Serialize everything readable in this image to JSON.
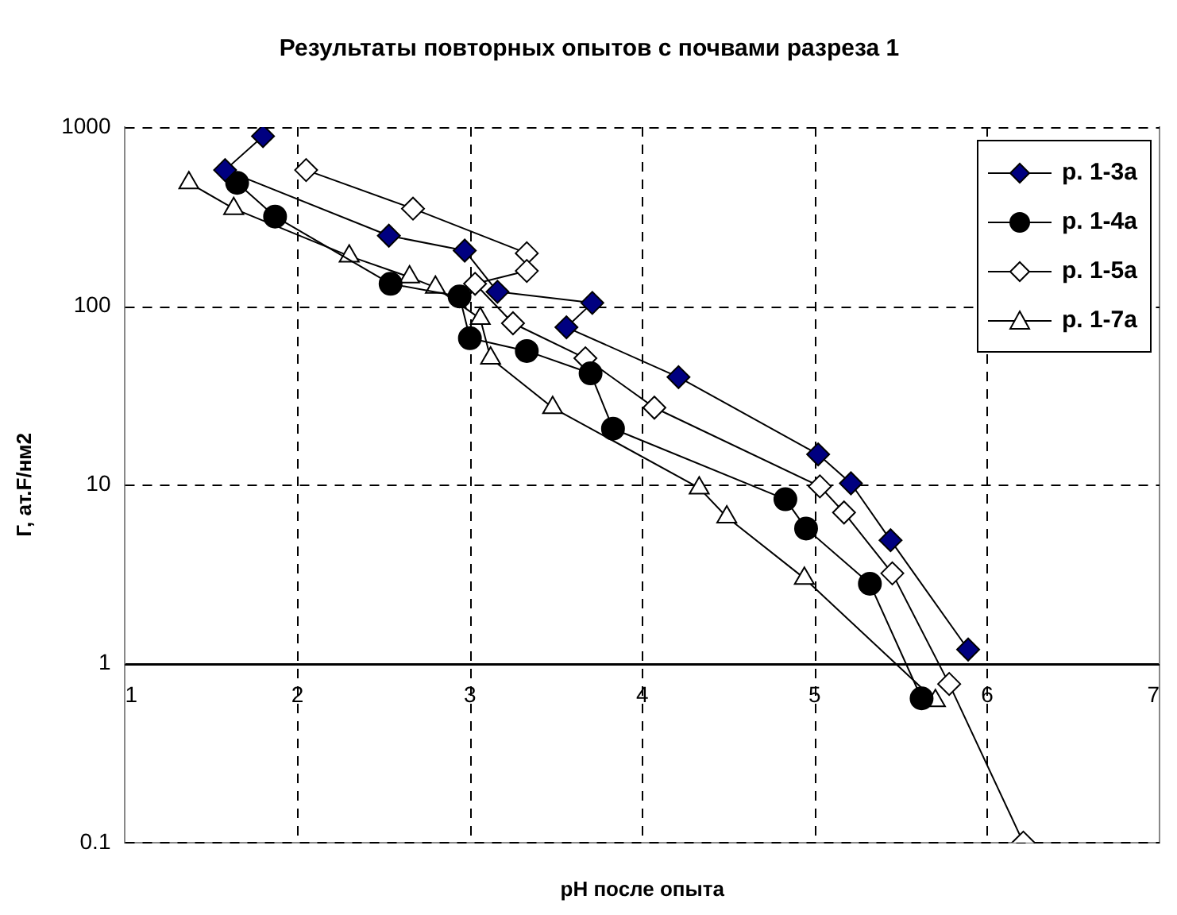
{
  "chart_data": {
    "type": "line",
    "title": "Результаты повторных опытов с почвами разреза 1",
    "xlabel": "pH после опыта",
    "ylabel": "Г, ат.F/нм2",
    "log": "y",
    "grid": true,
    "line_style": "solid",
    "legend": "top right",
    "xlim": [
      1,
      7
    ],
    "xticks": [
      1,
      2,
      3,
      4,
      5,
      6,
      7
    ],
    "ylim": [
      0.1,
      1000
    ],
    "yticks": [
      0.1,
      1,
      10,
      100,
      1000
    ],
    "series": [
      {
        "name": "р. 1-3а",
        "color": "#000080",
        "marker": "diamond",
        "x": [
          1.8,
          1.58,
          2.53,
          2.97,
          3.16,
          3.71,
          3.56,
          4.21,
          5.02,
          5.21,
          5.44,
          5.89
        ],
        "values": [
          890,
          575,
          247,
          204,
          120,
          104,
          76,
          40,
          14.8,
          10.2,
          4.9,
          1.2
        ]
      },
      {
        "name": "р. 1-4а",
        "color": "#000000",
        "marker": "circle",
        "x": [
          1.65,
          1.87,
          2.54,
          2.94,
          3.0,
          3.33,
          3.7,
          3.83,
          4.83,
          4.95,
          5.32,
          5.62
        ],
        "values": [
          488,
          316,
          133,
          113,
          66,
          56,
          42,
          20.6,
          8.3,
          5.7,
          2.8,
          0.64
        ]
      },
      {
        "name": "р. 1-5а",
        "color": "#ffffff",
        "marker": "diamond",
        "x": [
          2.05,
          2.67,
          3.33,
          3.33,
          3.03,
          3.25,
          3.67,
          4.07,
          5.03,
          5.17,
          5.45,
          5.78,
          6.21
        ],
        "values": [
          575,
          350,
          197,
          157,
          133,
          80,
          51,
          27,
          9.8,
          7.0,
          3.2,
          0.77,
          0.1
        ]
      },
      {
        "name": "р. 1-7а",
        "color": "#ffffff",
        "marker": "triangle",
        "x": [
          1.37,
          1.63,
          2.3,
          2.65,
          2.8,
          3.06,
          3.12,
          3.48,
          4.33,
          4.49,
          4.94,
          5.7
        ],
        "values": [
          488,
          350,
          190,
          145,
          127,
          85,
          51,
          27,
          9.6,
          6.6,
          3.0,
          0.62
        ]
      }
    ]
  }
}
